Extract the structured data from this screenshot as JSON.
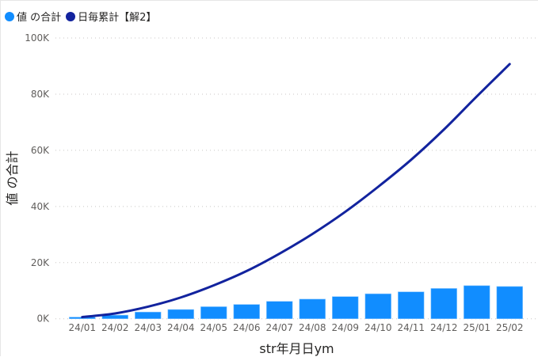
{
  "legend": {
    "items": [
      {
        "label": "値 の合計",
        "color": "#118DFF"
      },
      {
        "label": "日毎累計【解2】",
        "color": "#12239E"
      }
    ]
  },
  "axes": {
    "y_title": "値 の合計",
    "x_title": "str年月日ym",
    "y_ticks": [
      "0K",
      "20K",
      "40K",
      "60K",
      "80K",
      "100K"
    ]
  },
  "chart_data": {
    "type": "bar+line",
    "title": "",
    "xlabel": "str年月日ym",
    "ylabel": "値 の合計",
    "ylim": [
      0,
      100000
    ],
    "grid": true,
    "legend_position": "top-left",
    "categories": [
      "24/01",
      "24/02",
      "24/03",
      "24/04",
      "24/05",
      "24/06",
      "24/07",
      "24/08",
      "24/09",
      "24/10",
      "24/11",
      "24/12",
      "25/01",
      "25/02"
    ],
    "series": [
      {
        "name": "値 の合計",
        "type": "bar",
        "color": "#118DFF",
        "values": [
          600,
          1300,
          2400,
          3300,
          4300,
          5100,
          6200,
          7000,
          7900,
          8900,
          9600,
          10800,
          11800,
          11500
        ]
      },
      {
        "name": "日毎累計【解2】",
        "type": "line",
        "color": "#12239E",
        "values": [
          600,
          1900,
          4300,
          7600,
          11900,
          17000,
          23200,
          30200,
          38100,
          47000,
          56600,
          67400,
          79200,
          90700
        ]
      }
    ]
  }
}
